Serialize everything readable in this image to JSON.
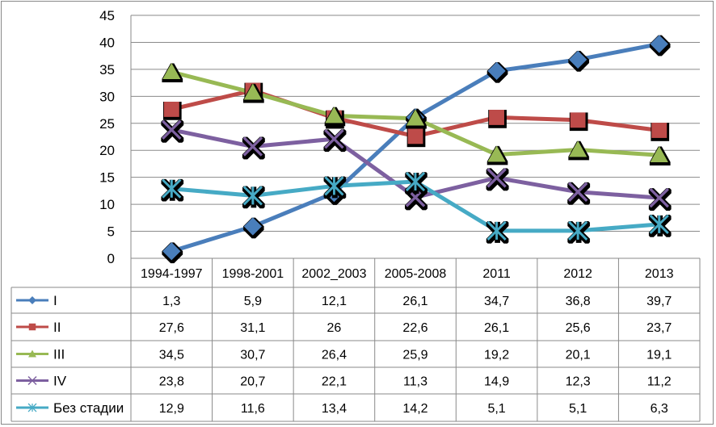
{
  "chart_data": {
    "type": "line",
    "categories": [
      "1994-1997",
      "1998-2001",
      "2002_2003",
      "2005-2008",
      "2011",
      "2012",
      "2013"
    ],
    "ylim": [
      0,
      45
    ],
    "yticks": [
      0,
      5,
      10,
      15,
      20,
      25,
      30,
      35,
      40,
      45
    ],
    "grid": true,
    "legend": "data-table",
    "series": [
      {
        "name": "I",
        "color": "#4a7ebb",
        "marker": "diamond",
        "values": [
          1.3,
          5.9,
          12.1,
          26.1,
          34.7,
          36.8,
          39.7
        ],
        "labels": [
          "1,3",
          "5,9",
          "12,1",
          "26,1",
          "34,7",
          "36,8",
          "39,7"
        ]
      },
      {
        "name": "II",
        "color": "#be4b48",
        "marker": "square",
        "values": [
          27.6,
          31.1,
          26,
          22.6,
          26.1,
          25.6,
          23.7
        ],
        "labels": [
          "27,6",
          "31,1",
          "26",
          "22,6",
          "26,1",
          "25,6",
          "23,7"
        ]
      },
      {
        "name": "III",
        "color": "#98b954",
        "marker": "triangle",
        "values": [
          34.5,
          30.7,
          26.4,
          25.9,
          19.2,
          20.1,
          19.1
        ],
        "labels": [
          "34,5",
          "30,7",
          "26,4",
          "25,9",
          "19,2",
          "20,1",
          "19,1"
        ]
      },
      {
        "name": "IV",
        "color": "#7d60a0",
        "marker": "x",
        "values": [
          23.8,
          20.7,
          22.1,
          11.3,
          14.9,
          12.3,
          11.2
        ],
        "labels": [
          "23,8",
          "20,7",
          "22,1",
          "11,3",
          "14,9",
          "12,3",
          "11,2"
        ]
      },
      {
        "name": "Без стадии",
        "color": "#46aac5",
        "marker": "star",
        "values": [
          12.9,
          11.6,
          13.4,
          14.2,
          5.1,
          5.1,
          6.3
        ],
        "labels": [
          "12,9",
          "11,6",
          "13,4",
          "14,2",
          "5,1",
          "5,1",
          "6,3"
        ]
      }
    ]
  }
}
